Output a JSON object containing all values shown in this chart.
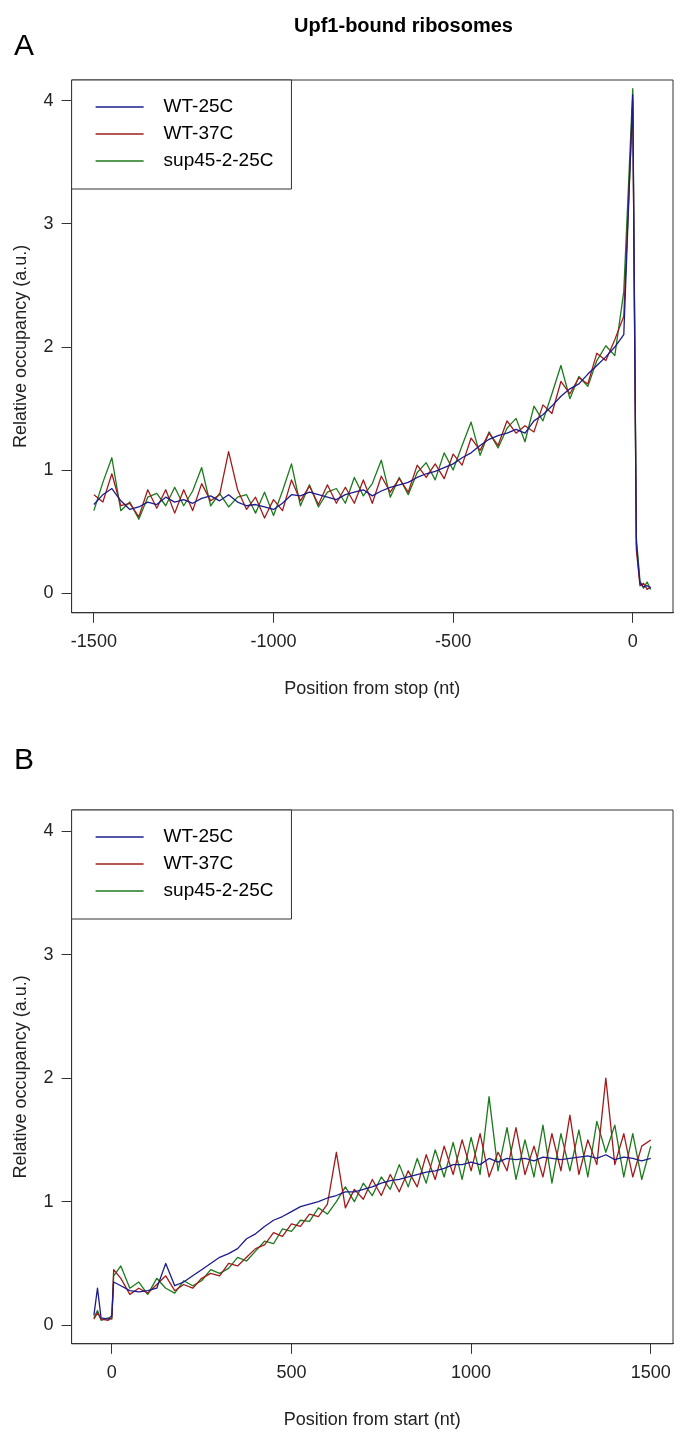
{
  "chart_data": [
    {
      "type": "line",
      "title": "Upf1-bound ribosomes",
      "annotations": [
        "A"
      ],
      "xlabel": "Position from stop (nt)",
      "ylabel": "Relative occupancy (a.u.)",
      "xlim": [
        -1562,
        112
      ],
      "xticks": [
        -1500,
        -1000,
        -500,
        0
      ],
      "ylim": [
        -0.16,
        4.17
      ],
      "yticks": [
        0,
        1,
        2,
        3,
        4
      ],
      "grid": false,
      "legend": "top left",
      "marker": "none",
      "line_style": "solid",
      "x": [
        -1500,
        -1475,
        -1450,
        -1425,
        -1400,
        -1375,
        -1350,
        -1325,
        -1300,
        -1275,
        -1250,
        -1225,
        -1200,
        -1175,
        -1150,
        -1125,
        -1100,
        -1075,
        -1050,
        -1025,
        -1000,
        -975,
        -950,
        -925,
        -900,
        -875,
        -850,
        -825,
        -800,
        -775,
        -750,
        -725,
        -700,
        -675,
        -650,
        -625,
        -600,
        -575,
        -550,
        -525,
        -500,
        -475,
        -450,
        -425,
        -400,
        -375,
        -350,
        -325,
        -300,
        -275,
        -250,
        -225,
        -200,
        -175,
        -150,
        -125,
        -100,
        -75,
        -50,
        -25,
        0,
        10,
        20,
        30,
        40,
        50
      ],
      "series": [
        {
          "name": "WT-25C",
          "color": "#1c1c8c",
          "values": [
            0.72,
            0.8,
            0.85,
            0.75,
            0.68,
            0.7,
            0.74,
            0.72,
            0.78,
            0.74,
            0.76,
            0.73,
            0.77,
            0.79,
            0.75,
            0.8,
            0.74,
            0.71,
            0.72,
            0.7,
            0.68,
            0.73,
            0.8,
            0.79,
            0.82,
            0.8,
            0.78,
            0.76,
            0.8,
            0.82,
            0.84,
            0.79,
            0.83,
            0.86,
            0.88,
            0.9,
            0.94,
            0.97,
            0.99,
            1.02,
            1.05,
            1.1,
            1.14,
            1.2,
            1.25,
            1.28,
            1.3,
            1.33,
            1.3,
            1.4,
            1.45,
            1.52,
            1.6,
            1.66,
            1.7,
            1.78,
            1.85,
            1.92,
            2.0,
            2.1,
            4.05,
            0.4,
            0.08,
            0.05,
            0.06,
            0.04
          ]
        },
        {
          "name": "WT-37C",
          "color": "#a01c1c",
          "values": [
            0.8,
            0.74,
            0.97,
            0.71,
            0.73,
            0.62,
            0.84,
            0.69,
            0.84,
            0.65,
            0.84,
            0.67,
            0.89,
            0.75,
            0.8,
            1.15,
            0.84,
            0.68,
            0.78,
            0.61,
            0.76,
            0.67,
            0.92,
            0.75,
            0.87,
            0.72,
            0.88,
            0.73,
            0.86,
            0.73,
            0.92,
            0.73,
            0.95,
            0.82,
            0.93,
            0.82,
            1.04,
            0.94,
            1.05,
            0.93,
            1.13,
            1.04,
            1.26,
            1.16,
            1.3,
            1.2,
            1.4,
            1.3,
            1.36,
            1.31,
            1.53,
            1.46,
            1.72,
            1.62,
            1.75,
            1.7,
            1.95,
            1.89,
            2.06,
            2.25,
            4.0,
            0.35,
            0.06,
            0.08,
            0.03,
            0.05
          ]
        },
        {
          "name": "sup45-2-25C",
          "color": "#1c7a1c",
          "values": [
            0.67,
            0.9,
            1.1,
            0.67,
            0.74,
            0.6,
            0.78,
            0.81,
            0.71,
            0.86,
            0.71,
            0.83,
            1.02,
            0.71,
            0.81,
            0.7,
            0.78,
            0.8,
            0.65,
            0.82,
            0.63,
            0.83,
            1.05,
            0.71,
            0.88,
            0.7,
            0.82,
            0.85,
            0.73,
            0.94,
            0.79,
            0.89,
            1.08,
            0.78,
            0.94,
            0.8,
            0.98,
            1.06,
            0.92,
            1.14,
            1.0,
            1.2,
            1.39,
            1.12,
            1.31,
            1.18,
            1.34,
            1.42,
            1.23,
            1.52,
            1.4,
            1.62,
            1.85,
            1.58,
            1.76,
            1.68,
            1.89,
            2.01,
            1.93,
            2.45,
            4.1,
            0.45,
            0.1,
            0.04,
            0.09,
            0.03
          ]
        }
      ]
    },
    {
      "type": "line",
      "annotations": [
        "B"
      ],
      "xlabel": "Position from start (nt)",
      "ylabel": "Relative occupancy (a.u.)",
      "xlim": [
        -112,
        1562
      ],
      "xticks": [
        0,
        500,
        1000,
        1500
      ],
      "ylim": [
        -0.15,
        4.17
      ],
      "yticks": [
        0,
        1,
        2,
        3,
        4
      ],
      "grid": false,
      "legend": "top left",
      "marker": "none",
      "line_style": "solid",
      "x": [
        -50,
        -40,
        -30,
        -10,
        0,
        5,
        25,
        50,
        75,
        100,
        125,
        150,
        175,
        200,
        225,
        250,
        275,
        300,
        325,
        350,
        375,
        400,
        425,
        450,
        475,
        500,
        525,
        550,
        575,
        600,
        625,
        650,
        675,
        700,
        725,
        750,
        775,
        800,
        825,
        850,
        875,
        900,
        925,
        950,
        975,
        1000,
        1025,
        1050,
        1075,
        1100,
        1125,
        1150,
        1175,
        1200,
        1225,
        1250,
        1275,
        1300,
        1325,
        1350,
        1375,
        1400,
        1425,
        1450,
        1475,
        1500
      ],
      "series": [
        {
          "name": "WT-25C",
          "color": "#1c1c8c",
          "values": [
            0.08,
            0.3,
            0.06,
            0.05,
            0.08,
            0.35,
            0.32,
            0.28,
            0.27,
            0.28,
            0.3,
            0.5,
            0.32,
            0.35,
            0.4,
            0.45,
            0.5,
            0.55,
            0.58,
            0.62,
            0.7,
            0.74,
            0.8,
            0.85,
            0.88,
            0.92,
            0.96,
            0.98,
            1.0,
            1.03,
            1.05,
            1.08,
            1.08,
            1.1,
            1.12,
            1.15,
            1.17,
            1.18,
            1.2,
            1.22,
            1.24,
            1.25,
            1.27,
            1.3,
            1.3,
            1.32,
            1.3,
            1.35,
            1.32,
            1.35,
            1.34,
            1.35,
            1.33,
            1.36,
            1.35,
            1.34,
            1.35,
            1.36,
            1.37,
            1.35,
            1.38,
            1.34,
            1.36,
            1.35,
            1.33,
            1.35
          ]
        },
        {
          "name": "WT-37C",
          "color": "#a01c1c",
          "values": [
            0.05,
            0.1,
            0.05,
            0.04,
            0.06,
            0.45,
            0.38,
            0.25,
            0.3,
            0.26,
            0.33,
            0.4,
            0.28,
            0.33,
            0.3,
            0.38,
            0.42,
            0.4,
            0.5,
            0.48,
            0.55,
            0.62,
            0.65,
            0.75,
            0.72,
            0.82,
            0.8,
            0.9,
            0.88,
            0.98,
            1.4,
            0.95,
            1.1,
            1.02,
            1.18,
            1.05,
            1.22,
            1.08,
            1.25,
            1.12,
            1.38,
            1.18,
            1.45,
            1.22,
            1.5,
            1.25,
            1.55,
            1.2,
            1.4,
            1.25,
            1.6,
            1.22,
            1.45,
            1.2,
            1.55,
            1.25,
            1.7,
            1.22,
            1.5,
            1.3,
            2.0,
            1.3,
            1.55,
            1.2,
            1.45,
            1.5
          ]
        },
        {
          "name": "sup45-2-25C",
          "color": "#1c7a1c",
          "values": [
            0.06,
            0.12,
            0.04,
            0.06,
            0.05,
            0.4,
            0.48,
            0.3,
            0.35,
            0.25,
            0.38,
            0.3,
            0.26,
            0.36,
            0.32,
            0.36,
            0.45,
            0.42,
            0.46,
            0.55,
            0.52,
            0.6,
            0.68,
            0.66,
            0.78,
            0.76,
            0.85,
            0.84,
            0.95,
            0.9,
            1.0,
            1.12,
            1.0,
            1.15,
            1.05,
            1.2,
            1.1,
            1.3,
            1.12,
            1.35,
            1.15,
            1.42,
            1.2,
            1.48,
            1.18,
            1.52,
            1.22,
            1.85,
            1.25,
            1.6,
            1.18,
            1.5,
            1.2,
            1.62,
            1.15,
            1.55,
            1.25,
            1.58,
            1.2,
            1.65,
            1.4,
            1.62,
            1.2,
            1.55,
            1.18,
            1.45
          ]
        }
      ]
    }
  ]
}
